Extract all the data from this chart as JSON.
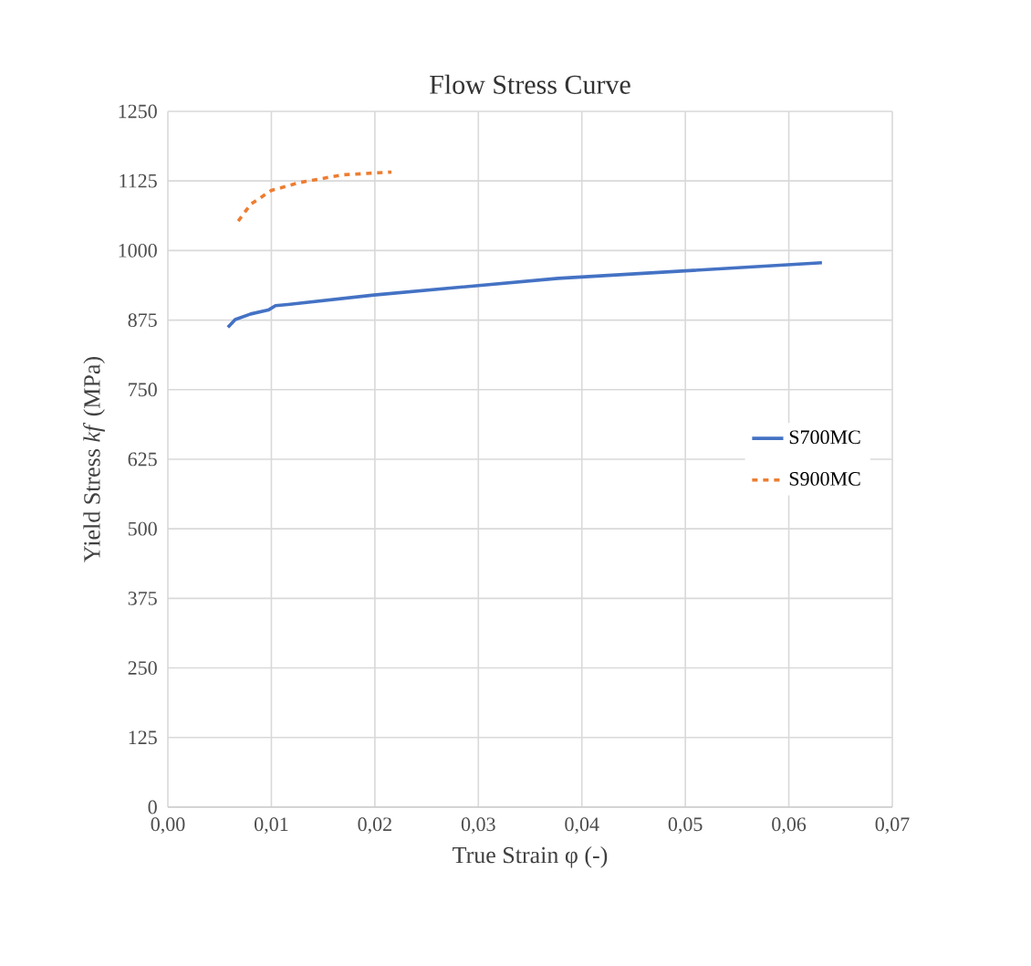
{
  "chart_data": {
    "type": "line",
    "title": "Flow Stress Curve",
    "xlabel": "True Strain φ  (-)",
    "ylabel": "Yield Stress *kf* (MPa)",
    "xlim": [
      0,
      0.07
    ],
    "ylim": [
      0,
      1250
    ],
    "xticks": [
      {
        "value": 0,
        "label": "0,00"
      },
      {
        "value": 0.01,
        "label": "0,01"
      },
      {
        "value": 0.02,
        "label": "0,02"
      },
      {
        "value": 0.03,
        "label": "0,03"
      },
      {
        "value": 0.04,
        "label": "0,04"
      },
      {
        "value": 0.05,
        "label": "0,05"
      },
      {
        "value": 0.06,
        "label": "0,06"
      },
      {
        "value": 0.07,
        "label": "0,07"
      }
    ],
    "yticks": [
      0,
      125,
      250,
      375,
      500,
      625,
      750,
      875,
      1000,
      1125,
      1250
    ],
    "grid": true,
    "legend": "right",
    "marker": "none",
    "series": [
      {
        "name": "S700MC",
        "color": "#4472c4",
        "line_style": "solid",
        "x": [
          0.0058,
          0.0065,
          0.008,
          0.0097,
          0.0104,
          0.0116,
          0.0199,
          0.0377,
          0.0632
        ],
        "values": [
          862,
          876,
          886,
          893,
          901,
          903,
          920,
          950,
          978
        ]
      },
      {
        "name": "S900MC",
        "color": "#ed7d31",
        "line_style": "dashed",
        "x": [
          0.0068,
          0.008,
          0.01,
          0.0127,
          0.0169,
          0.0216
        ],
        "values": [
          1053,
          1083,
          1108,
          1122,
          1136,
          1141
        ]
      }
    ]
  }
}
